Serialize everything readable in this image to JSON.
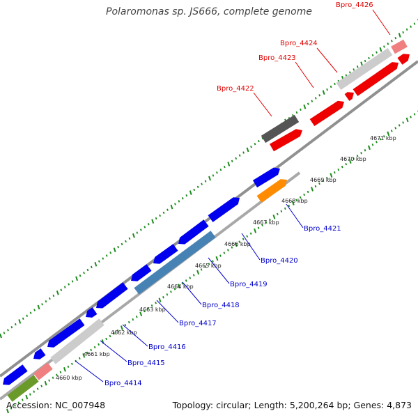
{
  "title": "Polaromonas sp. JS666, complete genome",
  "footer": {
    "accession": "Accession: NC_007948",
    "topology": "Topology: circular; Length: 5,200,264 bp; Genes: 4,873"
  },
  "colors": {
    "forward_label": "#e00000",
    "reverse_label": "#0000cc",
    "backbone": "#888888",
    "tick": "#1a8a1a"
  },
  "kbp_ticks": [
    "4660 kbp",
    "4661 kbp",
    "4662 kbp",
    "4663 kbp",
    "4664 kbp",
    "4665 kbp",
    "4666 kbp",
    "4667 kbp",
    "4668 kbp",
    "4669 kbp",
    "4670 kbp",
    "4671 kbp"
  ],
  "forward_labels": [
    "Bpro_4422",
    "Bpro_4423",
    "Bpro_4424",
    "Bpro_4426"
  ],
  "reverse_labels": [
    "Bpro_4414",
    "Bpro_4415",
    "Bpro_4416",
    "Bpro_4417",
    "Bpro_4418",
    "Bpro_4419",
    "Bpro_4420",
    "Bpro_4421"
  ]
}
